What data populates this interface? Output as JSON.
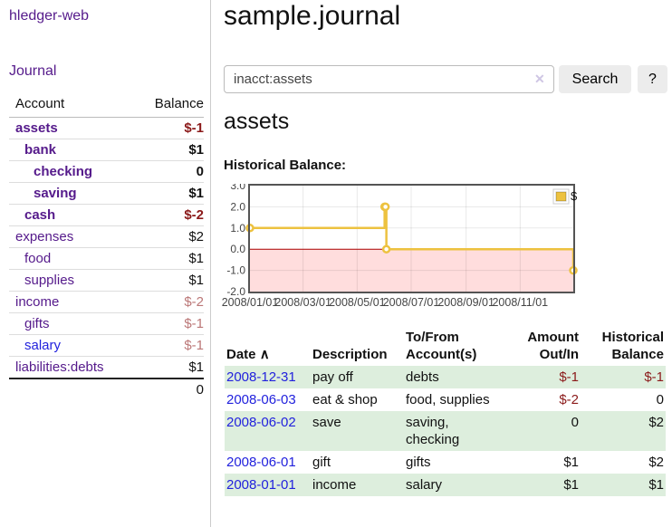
{
  "sidebar": {
    "brand": "hledger-web",
    "journal_link": "Journal",
    "accounts_table": {
      "headers": {
        "account": "Account",
        "balance": "Balance"
      },
      "rows": [
        {
          "name": "assets",
          "depth": 1,
          "bold": true,
          "link_color": "purple",
          "balance": "$-1",
          "balance_class": "strong-neg"
        },
        {
          "name": "bank",
          "depth": 2,
          "bold": true,
          "link_color": "purple",
          "balance": "$1",
          "balance_class": ""
        },
        {
          "name": "checking",
          "depth": 3,
          "bold": true,
          "link_color": "purple",
          "balance": "0",
          "balance_class": ""
        },
        {
          "name": "saving",
          "depth": 3,
          "bold": true,
          "link_color": "purple",
          "balance": "$1",
          "balance_class": ""
        },
        {
          "name": "cash",
          "depth": 2,
          "bold": true,
          "link_color": "purple",
          "balance": "$-2",
          "balance_class": "strong-neg"
        },
        {
          "name": "expenses",
          "depth": 1,
          "bold": false,
          "link_color": "purple",
          "balance": "$2",
          "balance_class": ""
        },
        {
          "name": "food",
          "depth": 2,
          "bold": false,
          "link_color": "purple",
          "balance": "$1",
          "balance_class": ""
        },
        {
          "name": "supplies",
          "depth": 2,
          "bold": false,
          "link_color": "purple",
          "balance": "$1",
          "balance_class": ""
        },
        {
          "name": "income",
          "depth": 1,
          "bold": false,
          "link_color": "purple",
          "balance": "$-2",
          "balance_class": "muted-neg"
        },
        {
          "name": "gifts",
          "depth": 2,
          "bold": false,
          "link_color": "purple",
          "balance": "$-1",
          "balance_class": "muted-neg"
        },
        {
          "name": "salary",
          "depth": 2,
          "bold": false,
          "link_color": "blue",
          "balance": "$-1",
          "balance_class": "muted-neg"
        },
        {
          "name": "liabilities:debts",
          "depth": 1,
          "bold": false,
          "link_color": "purple",
          "balance": "$1",
          "balance_class": ""
        }
      ],
      "total": "0"
    }
  },
  "header": {
    "title": "sample.journal"
  },
  "search": {
    "value": "inacct:assets",
    "clear_icon": "✕",
    "button_label": "Search",
    "help_label": "?"
  },
  "account_page": {
    "title": "assets",
    "chart_label": "Historical Balance:"
  },
  "chart_data": {
    "type": "line",
    "line_style": "step",
    "title": "Historical Balance:",
    "series": [
      {
        "name": "$",
        "color": "#edc240",
        "x": [
          "2008-01-01",
          "2008-06-01",
          "2008-06-02",
          "2008-06-03",
          "2008-12-31"
        ],
        "y": [
          1,
          2,
          2,
          0,
          -1
        ]
      }
    ],
    "xlim": [
      "2008-01-01",
      "2008-12-31"
    ],
    "ylim": [
      -2,
      3
    ],
    "yticks": [
      3.0,
      2.0,
      1.0,
      0.0,
      -1.0,
      -2.0
    ],
    "xticks": [
      "2008/01/01",
      "2008/03/01",
      "2008/05/01",
      "2008/07/01",
      "2008/09/01",
      "2008/11/01"
    ],
    "grid": true,
    "legend_position": "top-right",
    "legend_label": "$",
    "negative_region_color": "#ffdddd",
    "zero_line_color": "#aa0000",
    "border_color": "#545454",
    "marker": "open-circle"
  },
  "register_table": {
    "sort_indicator": "∧",
    "headers": {
      "date": "Date",
      "description": "Description",
      "accounts": "To/From Account(s)",
      "amount": "Amount Out/In",
      "balance": "Historical Balance"
    },
    "rows": [
      {
        "date": "2008-12-31",
        "description": "pay off",
        "accounts": "debts",
        "amount": "$-1",
        "balance": "$-1",
        "amount_neg": true,
        "balance_neg": true,
        "shaded": true
      },
      {
        "date": "2008-06-03",
        "description": "eat & shop",
        "accounts": "food, supplies",
        "amount": "$-2",
        "balance": "0",
        "amount_neg": true,
        "balance_neg": false,
        "shaded": false
      },
      {
        "date": "2008-06-02",
        "description": "save",
        "accounts": "saving, checking",
        "amount": "0",
        "balance": "$2",
        "amount_neg": false,
        "balance_neg": false,
        "shaded": true
      },
      {
        "date": "2008-06-01",
        "description": "gift",
        "accounts": "gifts",
        "amount": "$1",
        "balance": "$2",
        "amount_neg": false,
        "balance_neg": false,
        "shaded": false
      },
      {
        "date": "2008-01-01",
        "description": "income",
        "accounts": "salary",
        "amount": "$1",
        "balance": "$1",
        "amount_neg": false,
        "balance_neg": false,
        "shaded": true
      }
    ]
  },
  "colors": {
    "accent_purple": "#551a8b",
    "link_blue": "#2222dd",
    "negative_strong": "#8b1a1a",
    "negative_muted": "#bb7777",
    "row_green": "#ddeedd",
    "series_yellow": "#edc240",
    "chart_negative_bg": "#ffdddd",
    "zero_line": "#aa0000"
  }
}
